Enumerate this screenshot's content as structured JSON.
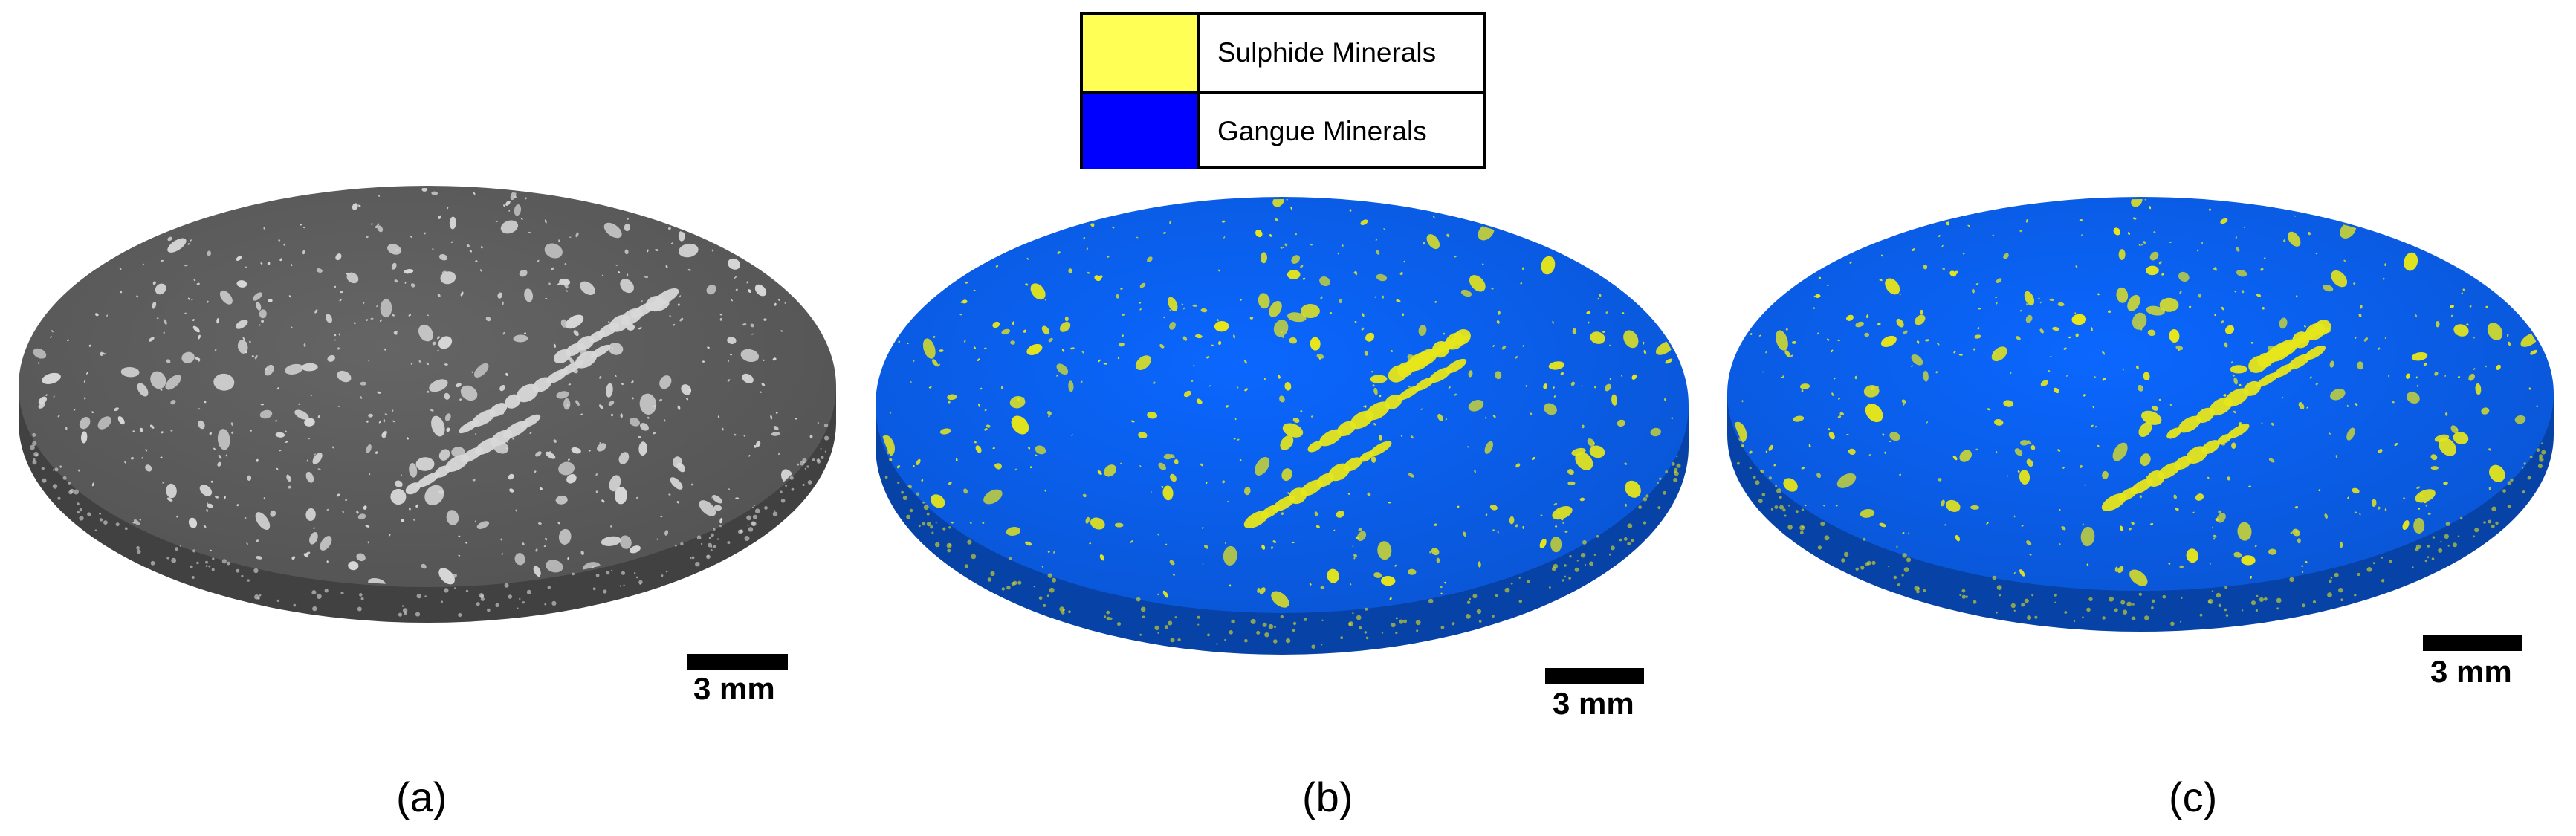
{
  "legend": {
    "items": [
      {
        "label": "Sulphide Minerals",
        "color": "#ffff55"
      },
      {
        "label": "Gangue Minerals",
        "color": "#0000ff"
      }
    ]
  },
  "panels": [
    {
      "label": "(a)",
      "scale_label": "3 mm",
      "rendering": "grayscale",
      "surface_color": "#5a5a5a",
      "particle_color": "#d8d8d8"
    },
    {
      "label": "(b)",
      "scale_label": "3 mm",
      "rendering": "segmented",
      "surface_color": "#0a5ce6",
      "particle_color": "#e6e61a"
    },
    {
      "label": "(c)",
      "scale_label": "3 mm",
      "rendering": "segmented",
      "surface_color": "#0a5ce6",
      "particle_color": "#e6e61a"
    }
  ]
}
